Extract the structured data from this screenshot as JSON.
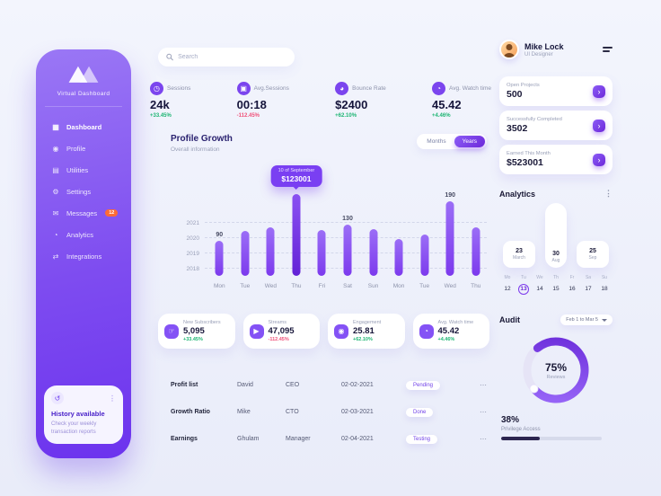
{
  "colors": {
    "primary": "#7c3aed",
    "primary_dark": "#6d28d9",
    "positive": "#1db573",
    "negative": "#f0527a",
    "badge": "#ff6b35"
  },
  "sidebar": {
    "brand_name": "Virtual Dashboard",
    "items": [
      {
        "label": "Dashboard",
        "icon": "dashboard-icon",
        "active": true
      },
      {
        "label": "Profile",
        "icon": "profile-icon"
      },
      {
        "label": "Utilities",
        "icon": "utilities-icon"
      },
      {
        "label": "Settings",
        "icon": "settings-icon"
      },
      {
        "label": "Messages",
        "icon": "messages-icon",
        "badge": "12"
      },
      {
        "label": "Analytics",
        "icon": "analytics-icon"
      },
      {
        "label": "Integrations",
        "icon": "integrations-icon"
      }
    ],
    "history": {
      "title": "History available",
      "subtitle": "Check your weekly transaction reports"
    }
  },
  "search": {
    "placeholder": "Search"
  },
  "kpis": [
    {
      "label": "Sessions",
      "value": "24k",
      "delta": "+33.45%",
      "trend": "up",
      "icon": "clock-icon"
    },
    {
      "label": "Avg.Sessions",
      "value": "00:18",
      "delta": "-112.45%",
      "trend": "down",
      "icon": "monitor-icon"
    },
    {
      "label": "Bounce Rate",
      "value": "$2400",
      "delta": "+62.10%",
      "trend": "up",
      "icon": "chart-pie-icon"
    },
    {
      "label": "Avg. Watch time",
      "value": "45.42",
      "delta": "+4.46%",
      "trend": "up",
      "icon": "watch-icon"
    }
  ],
  "profile_growth": {
    "title": "Profile Growth",
    "subtitle": "Overall information",
    "toggle_options": [
      "Months",
      "Years"
    ],
    "selected": "Years"
  },
  "chart_data": {
    "type": "bar",
    "title": "Profile Growth",
    "categories": [
      "Mon",
      "Tue",
      "Wed",
      "Thu",
      "Fri",
      "Sat",
      "Sun",
      "Mon",
      "Tue",
      "Wed",
      "Thu"
    ],
    "values": [
      90,
      115,
      125,
      210,
      118,
      130,
      120,
      95,
      105,
      190,
      125
    ],
    "ylim": [
      0,
      230
    ],
    "y_ticks": [
      "2021",
      "2020",
      "2019",
      "2018"
    ],
    "grid": "dashed-horizontal",
    "bar_labels": {
      "0": "90",
      "5": "130",
      "9": "190"
    },
    "tooltip": {
      "index": 3,
      "line1": "10 of September",
      "line2": "$123001"
    }
  },
  "metric_cards": [
    {
      "label": "New Subscribers",
      "value": "5,095",
      "delta": "+33.45%",
      "trend": "up",
      "icon": "cursor-icon"
    },
    {
      "label": "Streams",
      "value": "47,095",
      "delta": "-112.45%",
      "trend": "down",
      "icon": "play-icon"
    },
    {
      "label": "Engagement",
      "value": "25.81",
      "delta": "+62.10%",
      "trend": "up",
      "icon": "users-icon"
    },
    {
      "label": "Avg. Watch time",
      "value": "45.42",
      "delta": "+4.46%",
      "trend": "up",
      "icon": "watch-icon"
    }
  ],
  "table": {
    "rows": [
      {
        "metric": "Profit list",
        "person": "David",
        "role": "CEO",
        "date": "02-02-2021",
        "status": "Pending"
      },
      {
        "metric": "Growth Ratio",
        "person": "Mike",
        "role": "CTO",
        "date": "02-03-2021",
        "status": "Done"
      },
      {
        "metric": "Earnings",
        "person": "Ghulam",
        "role": "Manager",
        "date": "02-04-2021",
        "status": "Testing"
      }
    ]
  },
  "profile": {
    "name": "Mike Lock",
    "role": "UI Designer"
  },
  "summary_cards": [
    {
      "label": "Open Projects",
      "value": "500"
    },
    {
      "label": "Successfully Completed",
      "value": "3502"
    },
    {
      "label": "Earned This Month",
      "value": "$523001"
    }
  ],
  "analytics_widget": {
    "title": "Analytics",
    "items": [
      {
        "day": "23",
        "month": "March",
        "tall": false
      },
      {
        "day": "30",
        "month": "Aug",
        "tall": true
      },
      {
        "day": "25",
        "month": "Sep",
        "tall": false
      }
    ]
  },
  "calendar": {
    "day_names": [
      "Mo",
      "Tu",
      "We",
      "Th",
      "Fr",
      "Sa",
      "Su"
    ],
    "dates": [
      "12",
      "13",
      "14",
      "15",
      "16",
      "17",
      "18"
    ],
    "selected": "13"
  },
  "audit": {
    "title": "Audit",
    "range": "Feb 1 to Mar 5",
    "donut": {
      "percent": 75,
      "label": "75%",
      "sublabel": "Reviews"
    },
    "progress": {
      "percent": 38,
      "label": "38%",
      "sublabel": "Privilege Access"
    }
  }
}
